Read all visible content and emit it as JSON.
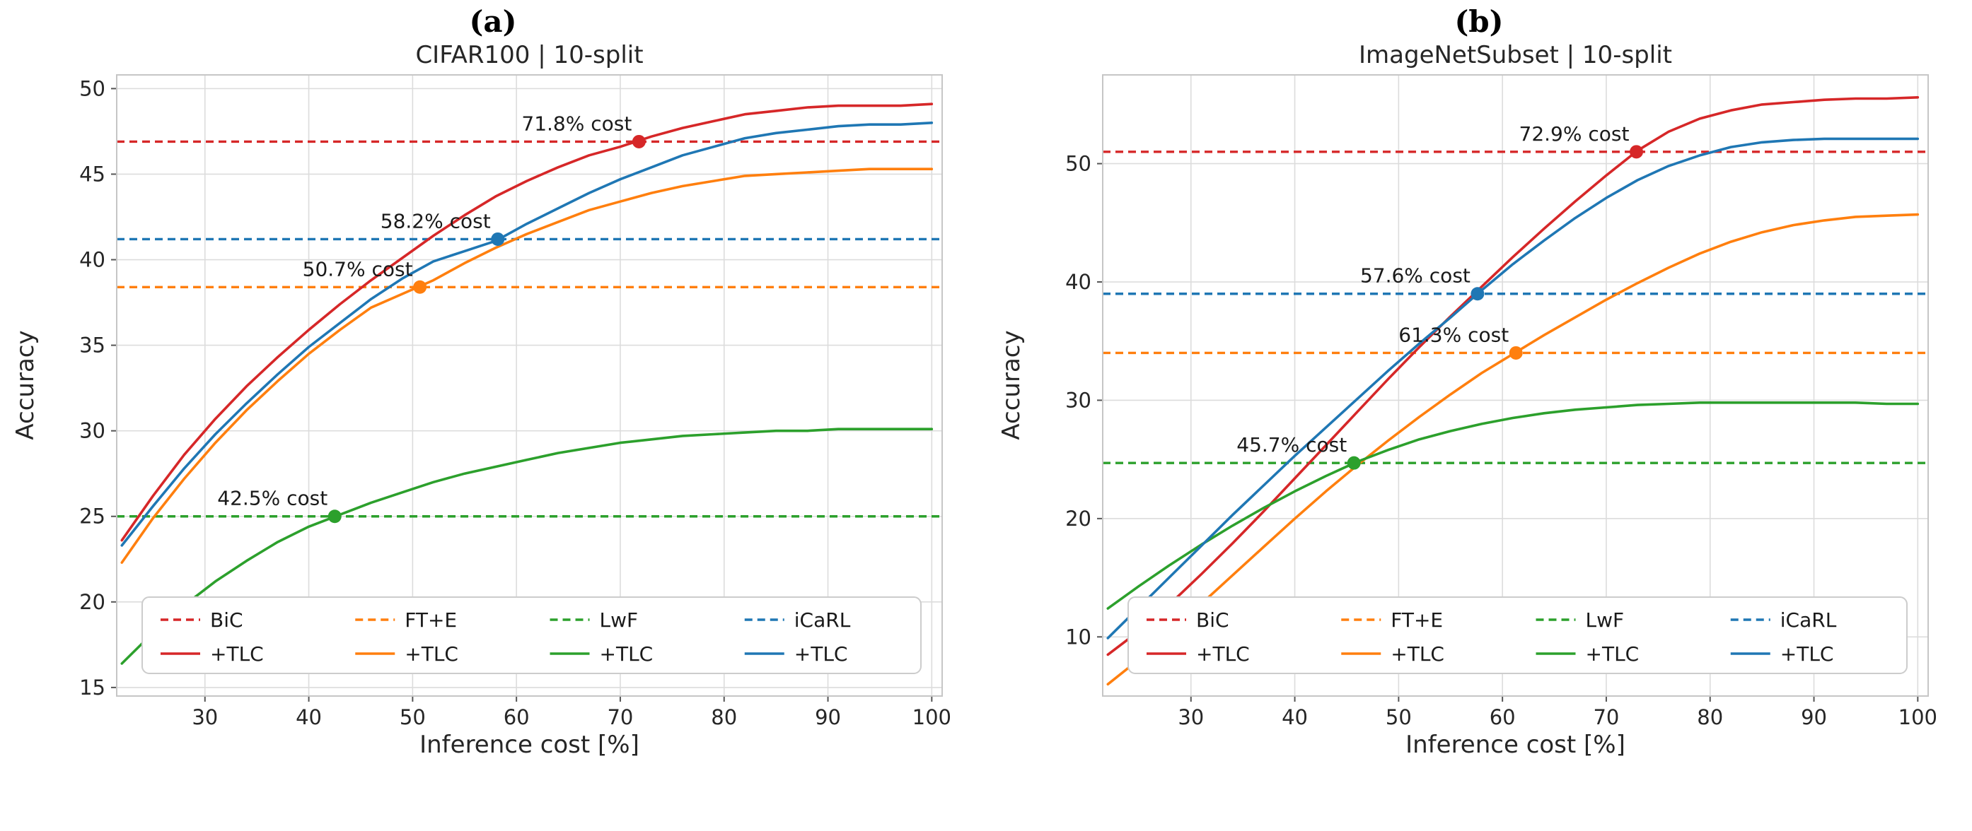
{
  "figure": {
    "panels": [
      {
        "label": "(a)"
      },
      {
        "label": "(b)"
      }
    ]
  },
  "colors": {
    "red": "#d62728",
    "orange": "#ff7f0e",
    "green": "#2ca02c",
    "blue": "#1f77b4"
  },
  "chart_data": [
    {
      "type": "line",
      "title": "CIFAR100 | 10-split",
      "xlabel": "Inference cost [%]",
      "ylabel": "Accuracy",
      "xlim": [
        21.5,
        101
      ],
      "ylim": [
        14.5,
        50.8
      ],
      "xticks": [
        30,
        40,
        50,
        60,
        70,
        80,
        90,
        100
      ],
      "yticks": [
        15,
        20,
        25,
        30,
        35,
        40,
        45,
        50
      ],
      "grid": true,
      "legend_position": "lower center",
      "x": [
        22,
        25,
        28,
        31,
        34,
        37,
        40,
        43,
        46,
        49,
        52,
        55,
        58,
        61,
        64,
        67,
        70,
        73,
        76,
        79,
        82,
        85,
        88,
        91,
        94,
        97,
        100
      ],
      "baselines": [
        {
          "name": "BiC",
          "value": 46.9,
          "color": "#d62728"
        },
        {
          "name": "iCaRL",
          "value": 41.2,
          "color": "#1f77b4"
        },
        {
          "name": "FT+E",
          "value": 38.4,
          "color": "#ff7f0e"
        },
        {
          "name": "LwF",
          "value": 25.0,
          "color": "#2ca02c"
        }
      ],
      "series": [
        {
          "name": "BiC +TLC",
          "color": "#d62728",
          "y": [
            23.6,
            26.2,
            28.6,
            30.7,
            32.6,
            34.3,
            35.9,
            37.4,
            38.8,
            40.1,
            41.4,
            42.6,
            43.7,
            44.6,
            45.4,
            46.1,
            46.6,
            47.2,
            47.7,
            48.1,
            48.5,
            48.7,
            48.9,
            49.0,
            49.0,
            49.0,
            49.1
          ]
        },
        {
          "name": "FT+E +TLC",
          "color": "#ff7f0e",
          "y": [
            22.3,
            24.9,
            27.2,
            29.3,
            31.2,
            32.9,
            34.5,
            35.9,
            37.2,
            38.0,
            38.8,
            39.8,
            40.7,
            41.5,
            42.2,
            42.9,
            43.4,
            43.9,
            44.3,
            44.6,
            44.9,
            45.0,
            45.1,
            45.2,
            45.3,
            45.3,
            45.3
          ]
        },
        {
          "name": "LwF +TLC",
          "color": "#2ca02c",
          "y": [
            16.4,
            18.2,
            19.8,
            21.2,
            22.4,
            23.5,
            24.4,
            25.1,
            25.8,
            26.4,
            27.0,
            27.5,
            27.9,
            28.3,
            28.7,
            29.0,
            29.3,
            29.5,
            29.7,
            29.8,
            29.9,
            30.0,
            30.0,
            30.1,
            30.1,
            30.1,
            30.1
          ]
        },
        {
          "name": "iCaRL +TLC",
          "color": "#1f77b4",
          "y": [
            23.3,
            25.6,
            27.8,
            29.8,
            31.6,
            33.3,
            34.9,
            36.3,
            37.7,
            38.9,
            39.9,
            40.5,
            41.1,
            42.1,
            43.0,
            43.9,
            44.7,
            45.4,
            46.1,
            46.6,
            47.1,
            47.4,
            47.6,
            47.8,
            47.9,
            47.9,
            48.0
          ]
        }
      ],
      "markers": [
        {
          "label": "71.8% cost",
          "x": 71.8,
          "y": 46.9,
          "color": "#d62728"
        },
        {
          "label": "58.2% cost",
          "x": 58.2,
          "y": 41.2,
          "color": "#1f77b4"
        },
        {
          "label": "50.7% cost",
          "x": 50.7,
          "y": 38.4,
          "color": "#ff7f0e"
        },
        {
          "label": "42.5% cost",
          "x": 42.5,
          "y": 25.0,
          "color": "#2ca02c"
        }
      ],
      "legend": [
        {
          "method": "BiC",
          "tlc": "+TLC",
          "color": "#d62728"
        },
        {
          "method": "FT+E",
          "tlc": "+TLC",
          "color": "#ff7f0e"
        },
        {
          "method": "LwF",
          "tlc": "+TLC",
          "color": "#2ca02c"
        },
        {
          "method": "iCaRL",
          "tlc": "+TLC",
          "color": "#1f77b4"
        }
      ]
    },
    {
      "type": "line",
      "title": "ImageNetSubset | 10-split",
      "xlabel": "Inference cost [%]",
      "ylabel": "Accuracy",
      "xlim": [
        21.5,
        101
      ],
      "ylim": [
        5,
        57.5
      ],
      "xticks": [
        30,
        40,
        50,
        60,
        70,
        80,
        90,
        100
      ],
      "yticks": [
        10,
        20,
        30,
        40,
        50
      ],
      "grid": true,
      "legend_position": "lower center",
      "x": [
        22,
        25,
        28,
        31,
        34,
        37,
        40,
        43,
        46,
        49,
        52,
        55,
        58,
        61,
        64,
        67,
        70,
        73,
        76,
        79,
        82,
        85,
        88,
        91,
        94,
        97,
        100
      ],
      "baselines": [
        {
          "name": "BiC",
          "value": 51.0,
          "color": "#d62728"
        },
        {
          "name": "iCaRL",
          "value": 39.0,
          "color": "#1f77b4"
        },
        {
          "name": "FT+E",
          "value": 34.0,
          "color": "#ff7f0e"
        },
        {
          "name": "LwF",
          "value": 24.7,
          "color": "#2ca02c"
        }
      ],
      "series": [
        {
          "name": "BiC +TLC",
          "color": "#d62728",
          "y": [
            8.5,
            10.5,
            12.8,
            15.3,
            17.9,
            20.6,
            23.4,
            26.2,
            29.0,
            31.8,
            34.5,
            37.1,
            39.6,
            42.1,
            44.5,
            46.8,
            49.0,
            51.1,
            52.7,
            53.8,
            54.5,
            55.0,
            55.2,
            55.4,
            55.5,
            55.5,
            55.6
          ]
        },
        {
          "name": "FT+E +TLC",
          "color": "#ff7f0e",
          "y": [
            6.0,
            8.1,
            10.4,
            12.8,
            15.2,
            17.6,
            20.0,
            22.3,
            24.5,
            26.6,
            28.6,
            30.5,
            32.3,
            33.9,
            35.5,
            37.0,
            38.5,
            39.9,
            41.2,
            42.4,
            43.4,
            44.2,
            44.8,
            45.2,
            45.5,
            45.6,
            45.7
          ]
        },
        {
          "name": "LwF +TLC",
          "color": "#2ca02c",
          "y": [
            12.4,
            14.3,
            16.1,
            17.8,
            19.4,
            20.9,
            22.3,
            23.6,
            24.8,
            25.8,
            26.7,
            27.4,
            28.0,
            28.5,
            28.9,
            29.2,
            29.4,
            29.6,
            29.7,
            29.8,
            29.8,
            29.8,
            29.8,
            29.8,
            29.8,
            29.7,
            29.7
          ]
        },
        {
          "name": "iCaRL +TLC",
          "color": "#1f77b4",
          "y": [
            9.9,
            12.5,
            15.1,
            17.7,
            20.3,
            22.8,
            25.3,
            27.7,
            30.1,
            32.5,
            34.8,
            37.0,
            39.3,
            41.5,
            43.5,
            45.4,
            47.1,
            48.6,
            49.8,
            50.7,
            51.4,
            51.8,
            52.0,
            52.1,
            52.1,
            52.1,
            52.1
          ]
        }
      ],
      "markers": [
        {
          "label": "72.9% cost",
          "x": 72.9,
          "y": 51.0,
          "color": "#d62728"
        },
        {
          "label": "57.6% cost",
          "x": 57.6,
          "y": 39.0,
          "color": "#1f77b4"
        },
        {
          "label": "61.3% cost",
          "x": 61.3,
          "y": 34.0,
          "color": "#ff7f0e"
        },
        {
          "label": "45.7% cost",
          "x": 45.7,
          "y": 24.7,
          "color": "#2ca02c"
        }
      ],
      "legend": [
        {
          "method": "BiC",
          "tlc": "+TLC",
          "color": "#d62728"
        },
        {
          "method": "FT+E",
          "tlc": "+TLC",
          "color": "#ff7f0e"
        },
        {
          "method": "LwF",
          "tlc": "+TLC",
          "color": "#2ca02c"
        },
        {
          "method": "iCaRL",
          "tlc": "+TLC",
          "color": "#1f77b4"
        }
      ]
    }
  ]
}
